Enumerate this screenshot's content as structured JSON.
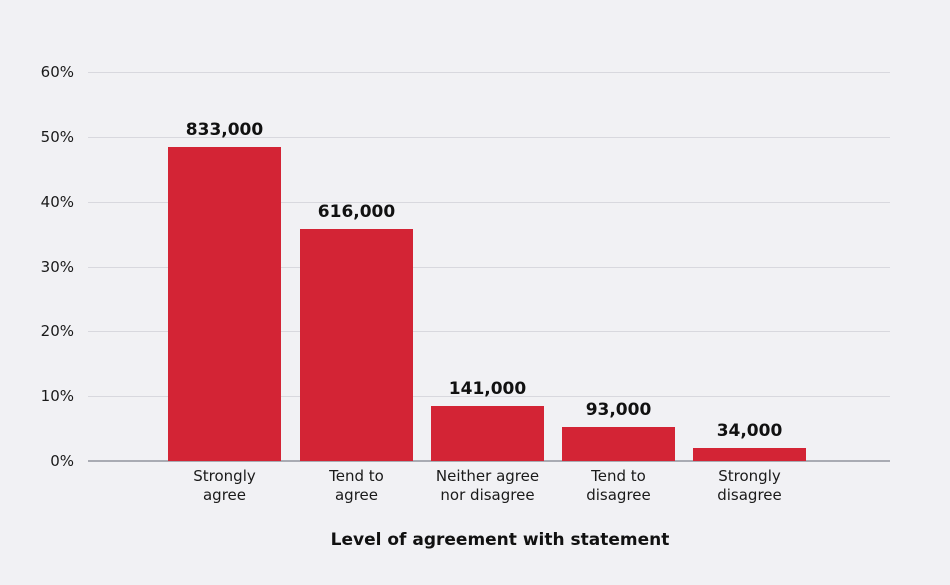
{
  "chart_data": {
    "type": "bar",
    "title": "",
    "xlabel": "Level of agreement with statement",
    "ylabel": "",
    "ylim": [
      0,
      60
    ],
    "yticks": [
      "0%",
      "10%",
      "20%",
      "30%",
      "40%",
      "50%",
      "60%"
    ],
    "grid": true,
    "legend": null,
    "categories": [
      "Strongly\nagree",
      "Tend to\nagree",
      "Neither agree\nnor disagree",
      "Tend to\ndisagree",
      "Strongly\ndisagree"
    ],
    "values": [
      48.5,
      35.8,
      8.5,
      5.2,
      2.0
    ],
    "value_unit": "%",
    "data_labels": [
      "833,000",
      "616,000",
      "141,000",
      "93,000",
      "34,000"
    ],
    "bar_color": "#d32435"
  }
}
